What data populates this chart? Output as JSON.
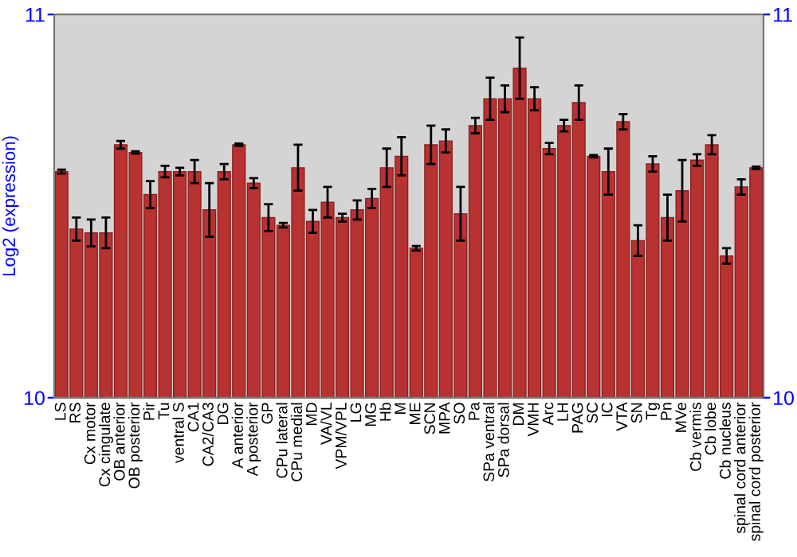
{
  "chart_data": {
    "type": "bar",
    "ylabel": "Log2 (expression)",
    "categories": [
      "LS",
      "RS",
      "Cx motor",
      "Cx cingulate",
      "OB anterior",
      "OB posterior",
      "Pir",
      "Tu",
      "ventral S",
      "CA1",
      "CA2/CA3",
      "DG",
      "A anterior",
      "A posterior",
      "GP",
      "CPu lateral",
      "CPu medial",
      "MD",
      "VA/VL",
      "VPM/VPL",
      "LG",
      "MG",
      "Hb",
      "M",
      "ME",
      "SCN",
      "MPA",
      "SO",
      "Pa",
      "SPa ventral",
      "SPa dorsal",
      "DM",
      "VMH",
      "Arc",
      "LH",
      "PAG",
      "SC",
      "IC",
      "VTA",
      "SN",
      "Tg",
      "Pn",
      "MVe",
      "Cb vermis",
      "Cb lobe",
      "Cb nucleus",
      "spinal cord anterior",
      "spinal cord posterior"
    ],
    "values": [
      10.59,
      10.44,
      10.43,
      10.43,
      10.66,
      10.64,
      10.53,
      10.59,
      10.59,
      10.59,
      10.49,
      10.59,
      10.66,
      10.56,
      10.47,
      10.45,
      10.6,
      10.46,
      10.51,
      10.47,
      10.49,
      10.52,
      10.6,
      10.63,
      10.39,
      10.66,
      10.67,
      10.48,
      10.71,
      10.78,
      10.78,
      10.86,
      10.78,
      10.65,
      10.71,
      10.77,
      10.63,
      10.59,
      10.72,
      10.41,
      10.61,
      10.47,
      10.54,
      10.62,
      10.66,
      10.37,
      10.55,
      10.6
    ],
    "errors": [
      0.005,
      0.03,
      0.035,
      0.04,
      0.01,
      0.003,
      0.035,
      0.015,
      0.01,
      0.03,
      0.07,
      0.02,
      0.003,
      0.013,
      0.035,
      0.006,
      0.06,
      0.03,
      0.04,
      0.01,
      0.025,
      0.025,
      0.05,
      0.05,
      0.006,
      0.05,
      0.03,
      0.07,
      0.02,
      0.055,
      0.035,
      0.08,
      0.03,
      0.015,
      0.015,
      0.045,
      0.003,
      0.06,
      0.02,
      0.04,
      0.02,
      0.06,
      0.08,
      0.015,
      0.025,
      0.02,
      0.02,
      0.003
    ],
    "color": "#b83232",
    "ylim": [
      10,
      11
    ],
    "yticks": [
      10,
      11
    ],
    "y2lim": [
      10,
      11
    ],
    "y2ticks": [
      10,
      11
    ],
    "grid": false,
    "legend": false
  }
}
